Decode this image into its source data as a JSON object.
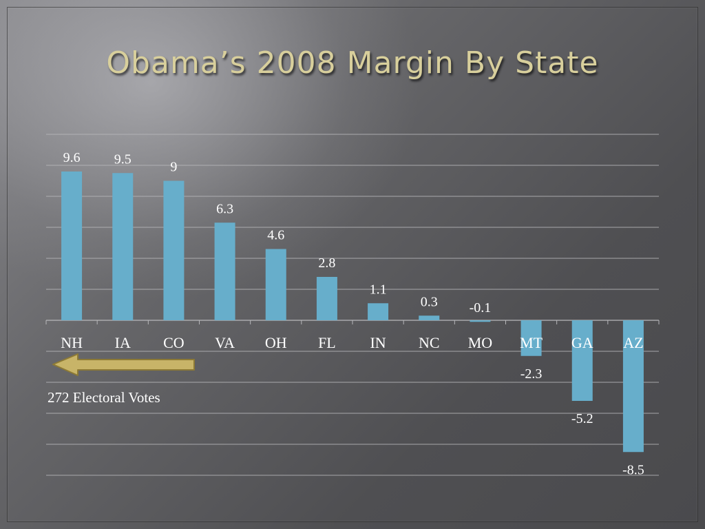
{
  "slide": {
    "title": "Obama’s 2008 Margin By State"
  },
  "annotation": {
    "text": "272 Electoral Votes",
    "arrow_direction": "left",
    "arrow_color": "#c8b468"
  },
  "chart_data": {
    "type": "bar",
    "title": "",
    "xlabel": "",
    "ylabel": "",
    "categories": [
      "NH",
      "IA",
      "CO",
      "VA",
      "OH",
      "FL",
      "IN",
      "NC",
      "MO",
      "MT",
      "GA",
      "AZ"
    ],
    "values": [
      9.6,
      9.5,
      9,
      6.3,
      4.6,
      2.8,
      1.1,
      0.3,
      -0.1,
      -2.3,
      -5.2,
      -8.5
    ],
    "value_labels": [
      "9.6",
      "9.5",
      "9",
      "6.3",
      "4.6",
      "2.8",
      "1.1",
      "0.3",
      "-0.1",
      "-2.3",
      "-5.2",
      "-8.5"
    ],
    "ylim": [
      -10,
      12
    ],
    "grid": true,
    "legend": "none",
    "bar_color": "#67aecb",
    "text_color": "#ffffff",
    "grid_color": "#b8b8bb"
  }
}
